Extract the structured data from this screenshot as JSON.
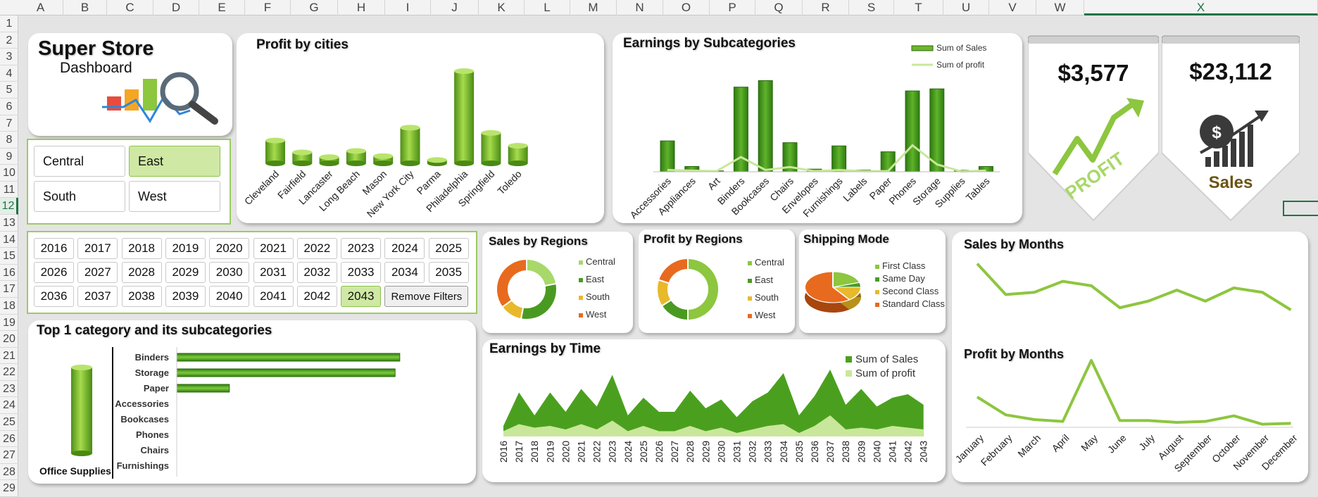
{
  "spreadsheet": {
    "columns": [
      "A",
      "B",
      "C",
      "D",
      "E",
      "F",
      "G",
      "H",
      "I",
      "J",
      "K",
      "L",
      "M",
      "N",
      "O",
      "P",
      "Q",
      "R",
      "S",
      "T",
      "U",
      "V",
      "W",
      "X"
    ],
    "rows": [
      "1",
      "2",
      "3",
      "4",
      "5",
      "6",
      "7",
      "8",
      "9",
      "10",
      "11",
      "12",
      "13",
      "14",
      "15",
      "16",
      "17",
      "18",
      "19",
      "20",
      "21",
      "22",
      "23",
      "24",
      "25",
      "26",
      "27",
      "28",
      "29"
    ],
    "selected_column": "X",
    "selected_row": "12"
  },
  "header": {
    "title": "Super Store",
    "subtitle": "Dashboard"
  },
  "regions_slicer": {
    "items": [
      {
        "label": "Central",
        "selected": false
      },
      {
        "label": "East",
        "selected": true
      },
      {
        "label": "South",
        "selected": false
      },
      {
        "label": "West",
        "selected": false
      }
    ]
  },
  "years_slicer": {
    "items": [
      "2016",
      "2017",
      "2018",
      "2019",
      "2020",
      "2021",
      "2022",
      "2023",
      "2024",
      "2025",
      "2026",
      "2027",
      "2028",
      "2029",
      "2030",
      "2031",
      "2032",
      "2033",
      "2034",
      "2035",
      "2036",
      "2037",
      "2038",
      "2039",
      "2040",
      "2041",
      "2042",
      "2043"
    ],
    "selected": "2043",
    "remove_label": "Remove Filters"
  },
  "kpi": {
    "profit_value": "$3,577",
    "profit_caption": "PROFIT",
    "sales_value": "$23,112",
    "sales_caption": "Sales"
  },
  "colors": {
    "green_dark": "#3f8f1f",
    "green_mid": "#6fb52c",
    "green_light": "#a8d86a",
    "green_pale": "#c9e79a",
    "yellow": "#e8b92a",
    "orange": "#e86a1e",
    "kpi_brown": "#6b5414"
  },
  "chart_data": [
    {
      "id": "profit_by_cities",
      "type": "bar",
      "title": "Profit by cities",
      "categories": [
        "Cleveland",
        "Fairfield",
        "Lancaster",
        "Long Beach",
        "Mason",
        "New York City",
        "Parma",
        "Philadelphia",
        "Springfield",
        "Toledo"
      ],
      "values": [
        240,
        115,
        65,
        130,
        75,
        375,
        35,
        970,
        320,
        185
      ],
      "ylim": [
        0,
        1000
      ],
      "style": "3d-cylinder"
    },
    {
      "id": "earnings_by_subcategories",
      "type": "bar",
      "title": "Earnings by Subcategories",
      "categories": [
        "Accessories",
        "Appliances",
        "Art",
        "Binders",
        "Bookcases",
        "Chairs",
        "Envelopes",
        "Furnishings",
        "Labels",
        "Paper",
        "Phones",
        "Storage",
        "Supplies",
        "Tables"
      ],
      "series": [
        {
          "name": "Sum of Sales",
          "type": "bar",
          "values": [
            1050,
            180,
            30,
            2880,
            3100,
            990,
            90,
            880,
            60,
            680,
            2750,
            2820,
            50,
            180
          ]
        },
        {
          "name": "Sum of profit",
          "type": "line",
          "values": [
            60,
            40,
            20,
            500,
            60,
            160,
            20,
            60,
            20,
            20,
            900,
            250,
            10,
            40
          ]
        }
      ],
      "ylim": [
        0,
        3400
      ],
      "legend": "top-right"
    },
    {
      "id": "sales_by_regions",
      "type": "pie",
      "title": "Sales by Regions",
      "donut": true,
      "categories": [
        "Central",
        "East",
        "South",
        "West"
      ],
      "values": [
        22,
        31,
        12,
        35
      ],
      "legend": "right"
    },
    {
      "id": "profit_by_regions",
      "type": "pie",
      "title": "Profit by Regions",
      "donut": true,
      "categories": [
        "Central",
        "East",
        "South",
        "West"
      ],
      "values": [
        50,
        16,
        14,
        20
      ],
      "legend": "right"
    },
    {
      "id": "shipping_mode",
      "type": "pie",
      "title": "Shipping Mode",
      "categories": [
        "First Class",
        "Same Day",
        "Second Class",
        "Standard Class"
      ],
      "values": [
        20,
        5,
        15,
        60
      ],
      "legend": "right"
    },
    {
      "id": "sales_by_months",
      "type": "line",
      "title": "Sales by Months",
      "categories": [
        "January",
        "February",
        "March",
        "April",
        "May",
        "June",
        "July",
        "August",
        "September",
        "October",
        "November",
        "December"
      ],
      "values": [
        2350,
        1650,
        1700,
        1950,
        1850,
        1350,
        1500,
        1750,
        1500,
        1800,
        1700,
        1300
      ],
      "ylim": [
        1000,
        2600
      ]
    },
    {
      "id": "profit_by_months",
      "type": "line",
      "title": "Profit by Months",
      "categories": [
        "January",
        "February",
        "March",
        "April",
        "May",
        "June",
        "July",
        "August",
        "September",
        "October",
        "November",
        "December"
      ],
      "values": [
        300,
        110,
        60,
        40,
        690,
        50,
        50,
        30,
        40,
        100,
        10,
        20
      ],
      "ylim": [
        0,
        750
      ]
    },
    {
      "id": "earnings_by_time",
      "type": "area",
      "title": "Earnings by Time",
      "categories": [
        "2016",
        "2017",
        "2018",
        "2019",
        "2020",
        "2021",
        "2022",
        "2023",
        "2024",
        "2025",
        "2026",
        "2027",
        "2028",
        "2029",
        "2030",
        "2031",
        "2032",
        "2033",
        "2034",
        "2035",
        "2036",
        "2037",
        "2038",
        "2039",
        "2040",
        "2041",
        "2042",
        "2043"
      ],
      "series": [
        {
          "name": "Sum of Sales",
          "values": [
            300,
            1250,
            600,
            1250,
            700,
            1350,
            850,
            1750,
            600,
            1100,
            700,
            700,
            1300,
            800,
            1050,
            550,
            1000,
            1250,
            1800,
            600,
            1150,
            1900,
            900,
            1350,
            850,
            1100,
            1200,
            900
          ]
        },
        {
          "name": "Sum of profit",
          "values": [
            150,
            350,
            250,
            300,
            200,
            350,
            200,
            450,
            150,
            300,
            150,
            150,
            300,
            150,
            250,
            100,
            200,
            300,
            350,
            100,
            300,
            600,
            200,
            250,
            200,
            300,
            250,
            200
          ]
        }
      ],
      "ylim": [
        0,
        2100
      ],
      "legend": "top-right"
    },
    {
      "id": "top_category",
      "type": "bar",
      "orientation": "horizontal",
      "title": "Top 1 category and its subcategories",
      "category_label": "Office Supplies",
      "categories": [
        "Binders",
        "Storage",
        "Paper",
        "Accessories",
        "Bookcases",
        "Phones",
        "Chairs",
        "Furnishings"
      ],
      "values": [
        2880,
        2820,
        680,
        0,
        0,
        0,
        0,
        0
      ],
      "xlim": [
        0,
        3000
      ]
    }
  ]
}
